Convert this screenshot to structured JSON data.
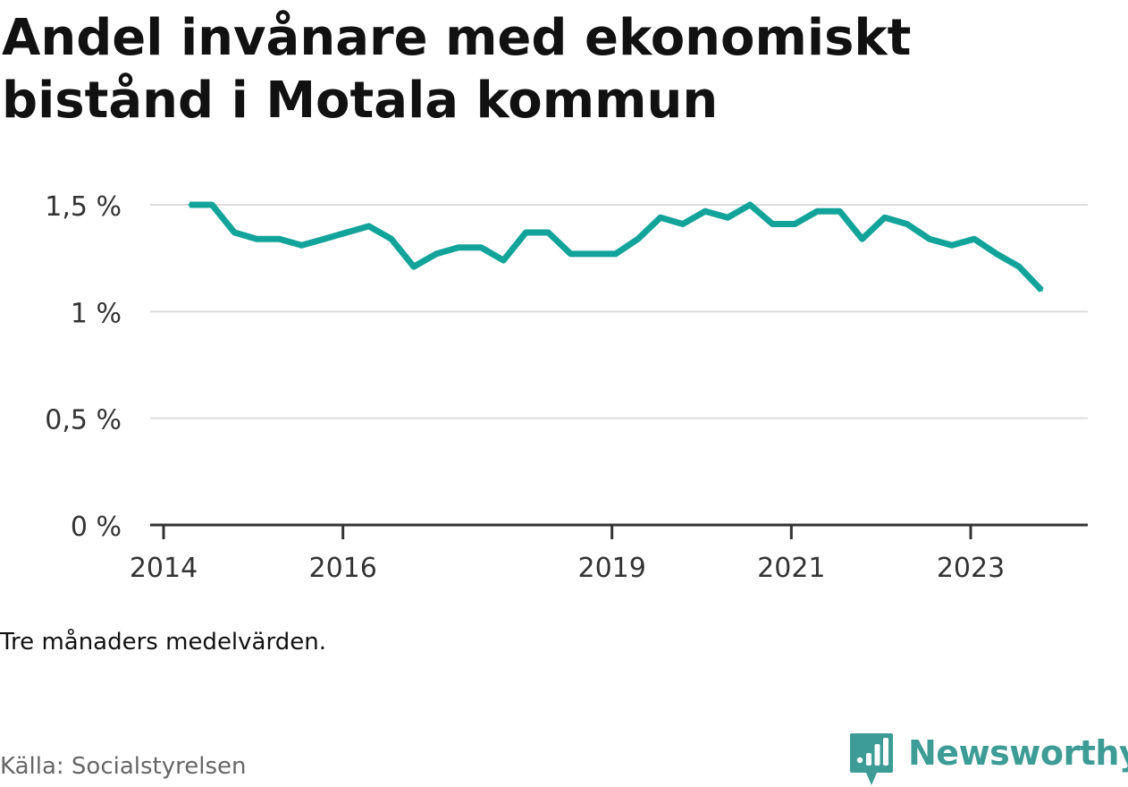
{
  "title": "Andel invånare med ekonomiskt bistånd i Motala kommun",
  "note": "Tre månaders medelvärden.",
  "source": "Källa: Socialstyrelsen",
  "brand": {
    "name": "Newsworthy",
    "color": "#3d9c95"
  },
  "chart_data": {
    "type": "line",
    "x_unit": "year",
    "y_unit": "%",
    "ylim": [
      0,
      1.5
    ],
    "xlim": [
      2014,
      2024.33
    ],
    "y_ticks": [
      {
        "value": 0,
        "label": "0 %"
      },
      {
        "value": 0.5,
        "label": "0,5 %"
      },
      {
        "value": 1,
        "label": "1 %"
      },
      {
        "value": 1.5,
        "label": "1,5 %"
      }
    ],
    "x_ticks": [
      {
        "value": 2014,
        "label": "2014"
      },
      {
        "value": 2016,
        "label": "2016"
      },
      {
        "value": 2019,
        "label": "2019"
      },
      {
        "value": 2021,
        "label": "2021"
      },
      {
        "value": 2023,
        "label": "2023"
      }
    ],
    "grid": true,
    "series": [
      {
        "color": "#12a39a",
        "points": [
          [
            2014.29,
            1.5
          ],
          [
            2014.54,
            1.5
          ],
          [
            2014.79,
            1.37
          ],
          [
            2015.04,
            1.34
          ],
          [
            2015.29,
            1.34
          ],
          [
            2015.54,
            1.31
          ],
          [
            2015.79,
            1.34
          ],
          [
            2016.04,
            1.37
          ],
          [
            2016.29,
            1.4
          ],
          [
            2016.54,
            1.34
          ],
          [
            2016.79,
            1.21
          ],
          [
            2017.04,
            1.27
          ],
          [
            2017.29,
            1.3
          ],
          [
            2017.54,
            1.3
          ],
          [
            2017.79,
            1.24
          ],
          [
            2018.04,
            1.37
          ],
          [
            2018.29,
            1.37
          ],
          [
            2018.54,
            1.27
          ],
          [
            2018.79,
            1.27
          ],
          [
            2019.04,
            1.27
          ],
          [
            2019.29,
            1.34
          ],
          [
            2019.54,
            1.44
          ],
          [
            2019.79,
            1.41
          ],
          [
            2020.04,
            1.47
          ],
          [
            2020.29,
            1.44
          ],
          [
            2020.54,
            1.5
          ],
          [
            2020.79,
            1.41
          ],
          [
            2021.04,
            1.41
          ],
          [
            2021.29,
            1.47
          ],
          [
            2021.54,
            1.47
          ],
          [
            2021.79,
            1.34
          ],
          [
            2022.04,
            1.44
          ],
          [
            2022.29,
            1.41
          ],
          [
            2022.54,
            1.34
          ],
          [
            2022.79,
            1.31
          ],
          [
            2023.04,
            1.34
          ],
          [
            2023.29,
            1.27
          ],
          [
            2023.54,
            1.21
          ],
          [
            2023.79,
            1.1
          ]
        ]
      }
    ]
  }
}
